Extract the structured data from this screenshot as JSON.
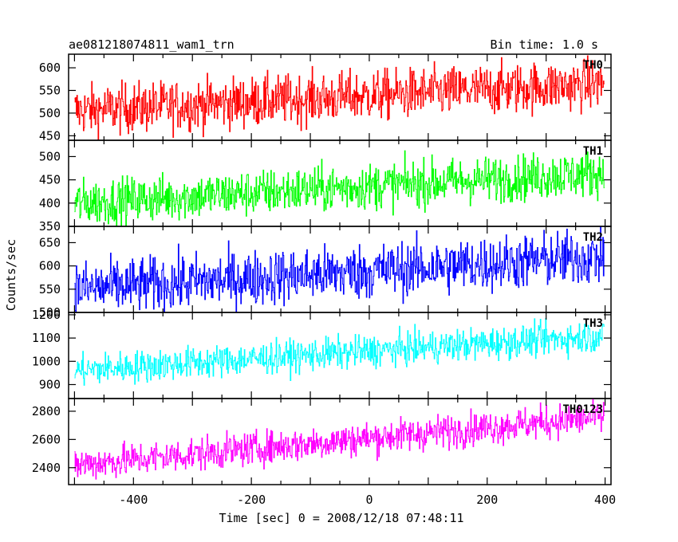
{
  "header": {
    "title": "ae081218074811_wam1_trn",
    "bin_time": "Bin time: 1.0 s"
  },
  "chart_data": {
    "type": "line",
    "xlabel": "Time [sec] 0 = 2008/12/18 07:48:11",
    "ylabel": "Counts/sec",
    "xlim": [
      -510,
      410
    ],
    "x_ticks": [
      -400,
      -200,
      0,
      200,
      400
    ],
    "x_step": 1.0,
    "grid": false,
    "panels": [
      {
        "name": "TH0",
        "color": "#ff0000",
        "ylim": [
          440,
          630
        ],
        "y_ticks": [
          450,
          500,
          550,
          600
        ],
        "trend_start": 505,
        "trend_end": 565,
        "noise": 28
      },
      {
        "name": "TH1",
        "color": "#00ff00",
        "ylim": [
          350,
          535
        ],
        "y_ticks": [
          350,
          400,
          450,
          500
        ],
        "trend_start": 400,
        "trend_end": 465,
        "noise": 25
      },
      {
        "name": "TH2",
        "color": "#0000ff",
        "ylim": [
          500,
          685
        ],
        "y_ticks": [
          500,
          550,
          600,
          650
        ],
        "trend_start": 550,
        "trend_end": 620,
        "noise": 30
      },
      {
        "name": "TH3",
        "color": "#00ffff",
        "ylim": [
          840,
          1210
        ],
        "y_ticks": [
          900,
          1000,
          1100,
          1200
        ],
        "trend_start": 960,
        "trend_end": 1110,
        "noise": 35
      },
      {
        "name": "TH0123",
        "color": "#ff00ff",
        "ylim": [
          2280,
          2890
        ],
        "y_ticks": [
          2400,
          2600,
          2800
        ],
        "trend_start": 2420,
        "trend_end": 2760,
        "noise": 60
      }
    ]
  }
}
